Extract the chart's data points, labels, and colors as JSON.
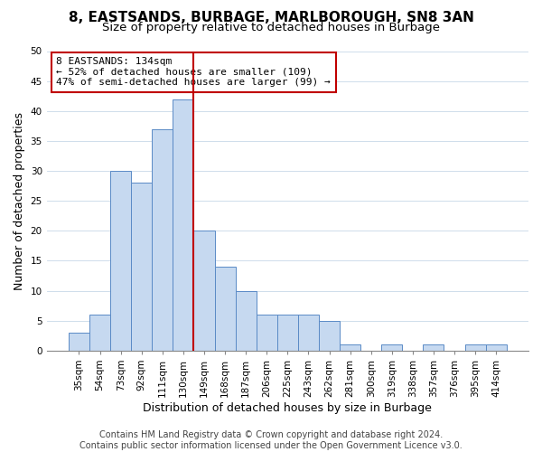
{
  "title": "8, EASTSANDS, BURBAGE, MARLBOROUGH, SN8 3AN",
  "subtitle": "Size of property relative to detached houses in Burbage",
  "xlabel": "Distribution of detached houses by size in Burbage",
  "ylabel": "Number of detached properties",
  "bar_labels": [
    "35sqm",
    "54sqm",
    "73sqm",
    "92sqm",
    "111sqm",
    "130sqm",
    "149sqm",
    "168sqm",
    "187sqm",
    "206sqm",
    "225sqm",
    "243sqm",
    "262sqm",
    "281sqm",
    "300sqm",
    "319sqm",
    "338sqm",
    "357sqm",
    "376sqm",
    "395sqm",
    "414sqm"
  ],
  "bar_values": [
    3,
    6,
    30,
    28,
    37,
    42,
    20,
    14,
    10,
    6,
    6,
    6,
    5,
    1,
    0,
    1,
    0,
    1,
    0,
    1,
    1
  ],
  "bar_color": "#c6d9f0",
  "bar_edge_color": "#5a8ac6",
  "vline_x": 5.5,
  "vline_color": "#c00000",
  "ylim": [
    0,
    50
  ],
  "annotation_title": "8 EASTSANDS: 134sqm",
  "annotation_line1": "← 52% of detached houses are smaller (109)",
  "annotation_line2": "47% of semi-detached houses are larger (99) →",
  "annotation_box_color": "#ffffff",
  "annotation_box_edge": "#c00000",
  "footer_line1": "Contains HM Land Registry data © Crown copyright and database right 2024.",
  "footer_line2": "Contains public sector information licensed under the Open Government Licence v3.0.",
  "title_fontsize": 11,
  "subtitle_fontsize": 9.5,
  "axis_label_fontsize": 9,
  "tick_fontsize": 7.5,
  "annotation_fontsize": 8,
  "footer_fontsize": 7
}
